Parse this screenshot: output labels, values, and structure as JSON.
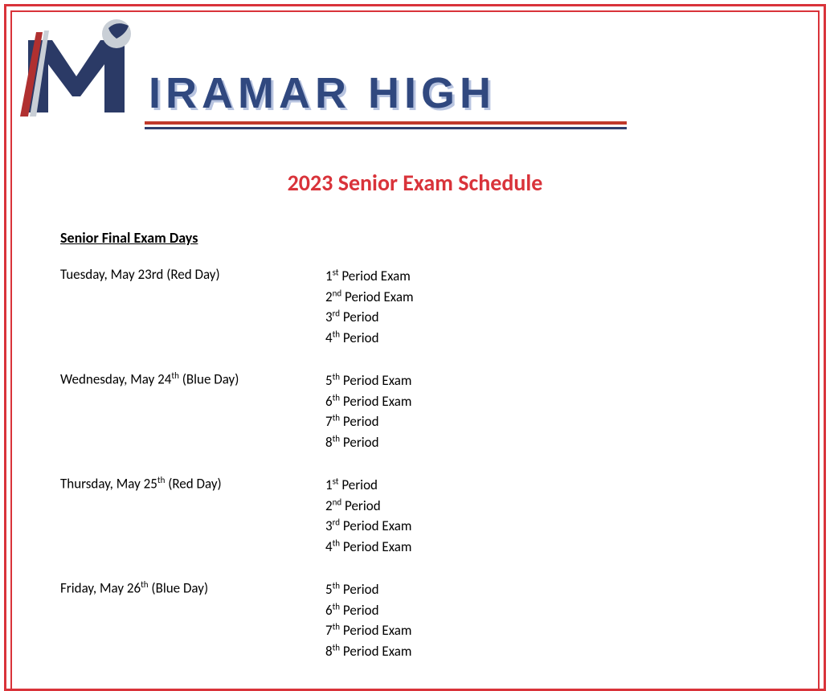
{
  "border": {
    "outer_color": "#d9333a",
    "inner_color": "#d9333a"
  },
  "header": {
    "school_name": "IRAMAR  HIGH",
    "school_name_color": "#30487f",
    "school_name_shadow": "#b8c4e0",
    "underline_red": "#c0392b",
    "underline_blue": "#2f3e6e",
    "logo_colors": {
      "navy": "#2b3a66",
      "red": "#b03030",
      "silver": "#c9cfd6"
    }
  },
  "title": {
    "text": "2023 Senior Exam Schedule",
    "color": "#d9333a"
  },
  "section_heading": "Senior Final Exam Days",
  "days": [
    {
      "label_pre": "Tuesday, May 23rd (Red Day)",
      "label_post": "",
      "ord": "",
      "periods": [
        {
          "ord": "st",
          "n": "1",
          "text": " Period Exam"
        },
        {
          "ord": "nd",
          "n": "2",
          "text": " Period Exam"
        },
        {
          "ord": "rd",
          "n": "3",
          "text": " Period"
        },
        {
          "ord": "th",
          "n": "4",
          "text": " Period"
        }
      ]
    },
    {
      "label_pre": "Wednesday, May 24",
      "label_post": " (Blue Day)",
      "ord": "th",
      "periods": [
        {
          "ord": "th",
          "n": "5",
          "text": " Period Exam"
        },
        {
          "ord": "th",
          "n": "6",
          "text": " Period Exam"
        },
        {
          "ord": "th",
          "n": "7",
          "text": " Period"
        },
        {
          "ord": "th",
          "n": "8",
          "text": " Period"
        }
      ]
    },
    {
      "label_pre": "Thursday, May 25",
      "label_post": " (Red Day)",
      "ord": "th",
      "periods": [
        {
          "ord": "st",
          "n": "1",
          "text": " Period"
        },
        {
          "ord": "nd",
          "n": "2",
          "text": " Period"
        },
        {
          "ord": "rd",
          "n": "3",
          "text": " Period Exam"
        },
        {
          "ord": "th",
          "n": "4",
          "text": " Period Exam"
        }
      ]
    },
    {
      "label_pre": "Friday, May 26",
      "label_post": " (Blue Day)",
      "ord": "th",
      "periods": [
        {
          "ord": "th",
          "n": "5",
          "text": " Period"
        },
        {
          "ord": "th",
          "n": "6",
          "text": " Period"
        },
        {
          "ord": "th",
          "n": "7",
          "text": " Period Exam"
        },
        {
          "ord": "th",
          "n": "8",
          "text": " Period Exam"
        }
      ]
    }
  ]
}
